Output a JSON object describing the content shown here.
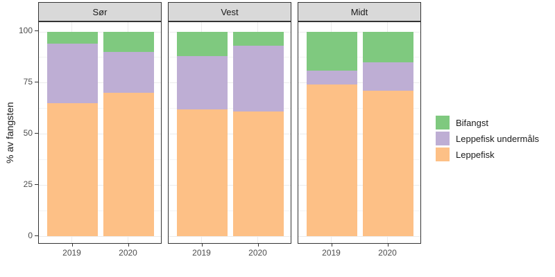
{
  "chart_data": {
    "type": "bar",
    "stacked": true,
    "orientation": "vertical",
    "facets": [
      "Sør",
      "Vest",
      "Midt"
    ],
    "categories": [
      "2019",
      "2020"
    ],
    "series": [
      {
        "name": "Leppefisk",
        "color": "#FDC086",
        "values": [
          [
            65,
            70
          ],
          [
            62,
            61
          ],
          [
            74,
            71
          ]
        ]
      },
      {
        "name": "Leppefisk undermåls",
        "color": "#BEAED4",
        "values": [
          [
            29,
            20
          ],
          [
            26,
            32
          ],
          [
            7,
            14
          ]
        ]
      },
      {
        "name": "Bifangst",
        "color": "#7FC97F",
        "values": [
          [
            6,
            10
          ],
          [
            12,
            7
          ],
          [
            19,
            15
          ]
        ]
      }
    ],
    "xlabel": "",
    "ylabel": "% av fangsten",
    "ylim": [
      0,
      100
    ],
    "yticks": [
      0,
      25,
      50,
      75,
      100
    ],
    "grid": "major and minor horizontal, major vertical at category centers",
    "legend": {
      "position": "right",
      "entries": [
        {
          "label": "Bifangst",
          "color": "#7FC97F"
        },
        {
          "label": "Leppefisk undermåls",
          "color": "#BEAED4"
        },
        {
          "label": "Leppefisk",
          "color": "#FDC086"
        }
      ]
    }
  },
  "theme": {
    "strip_background": "#D9D9D9",
    "panel_border": "#333333",
    "grid_major": "#EBEBEB",
    "grid_minor": "#F4F4F4",
    "tick_text_color": "#4D4D4D",
    "text_color": "#1A1A1A",
    "background": "#FFFFFF"
  }
}
